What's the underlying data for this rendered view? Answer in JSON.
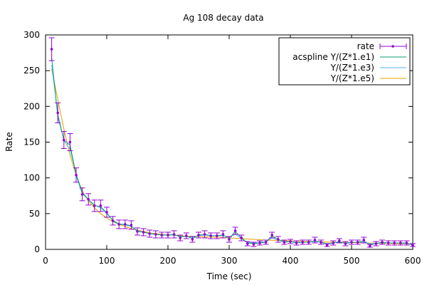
{
  "chart_data": {
    "type": "line",
    "title": "Ag 108 decay data",
    "xlabel": "Time (sec)",
    "ylabel": "Rate",
    "xlim": [
      0,
      600
    ],
    "ylim": [
      0,
      300
    ],
    "xticks": [
      0,
      100,
      200,
      300,
      400,
      500,
      600
    ],
    "yticks": [
      0,
      50,
      100,
      150,
      200,
      250,
      300
    ],
    "grid": false,
    "legend_position": "top-right",
    "colors": {
      "rate": "#9400d3",
      "fit1": "#009e73",
      "fit3": "#56b4e9",
      "fit5": "#e69f00"
    },
    "series": [
      {
        "name": "rate",
        "style": "points-errorbars",
        "x": [
          10,
          20,
          30,
          40,
          50,
          60,
          70,
          80,
          90,
          100,
          110,
          120,
          130,
          140,
          150,
          160,
          170,
          180,
          190,
          200,
          210,
          220,
          230,
          240,
          250,
          260,
          270,
          280,
          290,
          300,
          310,
          320,
          330,
          340,
          350,
          360,
          370,
          380,
          390,
          400,
          410,
          420,
          430,
          440,
          450,
          460,
          470,
          480,
          490,
          500,
          510,
          520,
          530,
          540,
          550,
          560,
          570,
          580,
          590,
          600
        ],
        "y": [
          280,
          191,
          153,
          150,
          104,
          77,
          70,
          61,
          61,
          52,
          40,
          35,
          35,
          34,
          25,
          24,
          22,
          21,
          20,
          20,
          21,
          16,
          19,
          14,
          20,
          21,
          19,
          19,
          21,
          14,
          26,
          16,
          8,
          7,
          9,
          10,
          20,
          14,
          10,
          11,
          9,
          10,
          10,
          13,
          10,
          6,
          9,
          12,
          8,
          10,
          10,
          13,
          5,
          8,
          10,
          9,
          9,
          9,
          9,
          6
        ],
        "err": [
          16,
          14,
          12,
          12,
          10,
          9,
          8,
          8,
          8,
          7,
          6,
          6,
          6,
          6,
          5,
          5,
          5,
          5,
          4,
          4,
          5,
          4,
          4,
          4,
          4,
          5,
          4,
          4,
          5,
          4,
          5,
          4,
          3,
          3,
          3,
          3,
          4,
          4,
          3,
          3,
          3,
          3,
          3,
          4,
          3,
          2,
          3,
          3,
          3,
          3,
          3,
          4,
          2,
          3,
          3,
          3,
          3,
          3,
          3,
          2
        ]
      },
      {
        "name": "acspline Y/(Z*1.e1)",
        "style": "line",
        "x": [
          10,
          20,
          30,
          40,
          50,
          60,
          70,
          80,
          90,
          100,
          110,
          120,
          130,
          140,
          150,
          160,
          170,
          180,
          190,
          200,
          210,
          220,
          230,
          240,
          250,
          260,
          270,
          280,
          290,
          300,
          310,
          320,
          330,
          340,
          350,
          360,
          370,
          380,
          390,
          400,
          410,
          420,
          430,
          440,
          450,
          460,
          470,
          480,
          490,
          500,
          510,
          520,
          530,
          540,
          550,
          560,
          570,
          580,
          590,
          600
        ],
        "y": [
          268,
          186,
          153,
          146,
          104,
          78,
          70,
          61,
          60,
          51,
          40,
          35,
          35,
          33,
          25,
          24,
          22,
          21,
          20,
          20,
          21,
          17,
          19,
          15,
          20,
          21,
          19,
          19,
          20,
          15,
          25,
          16,
          9,
          8,
          9,
          10,
          19,
          14,
          10,
          11,
          9,
          10,
          10,
          12,
          10,
          7,
          9,
          11,
          8,
          10,
          10,
          12,
          6,
          8,
          10,
          9,
          9,
          9,
          9,
          6
        ]
      },
      {
        "name": "Y/(Z*1.e3)",
        "style": "line",
        "x": [
          10,
          20,
          30,
          40,
          50,
          60,
          70,
          80,
          90,
          100,
          110,
          120,
          130,
          140,
          150,
          160,
          170,
          180,
          190,
          200,
          210,
          220,
          230,
          240,
          250,
          260,
          270,
          280,
          290,
          300,
          310,
          320,
          330,
          340,
          350,
          360,
          370,
          380,
          390,
          400,
          410,
          420,
          430,
          440,
          450,
          460,
          470,
          480,
          490,
          500,
          510,
          520,
          530,
          540,
          550,
          560,
          570,
          580,
          590,
          600
        ],
        "y": [
          258,
          190,
          152,
          140,
          106,
          80,
          70,
          62,
          58,
          50,
          41,
          36,
          34,
          32,
          26,
          24,
          22,
          21,
          20,
          20,
          20,
          18,
          18,
          17,
          19,
          20,
          19,
          19,
          19,
          17,
          21,
          15,
          10,
          9,
          10,
          11,
          16,
          13,
          11,
          11,
          10,
          10,
          10,
          11,
          10,
          8,
          9,
          10,
          9,
          10,
          10,
          10,
          8,
          9,
          9,
          9,
          9,
          9,
          8,
          7
        ]
      },
      {
        "name": "Y/(Z*1.e5)",
        "style": "line",
        "x": [
          10,
          20,
          30,
          40,
          50,
          60,
          70,
          80,
          90,
          100,
          110,
          120,
          130,
          140,
          150,
          160,
          170,
          180,
          190,
          200,
          210,
          220,
          230,
          240,
          250,
          260,
          270,
          280,
          290,
          300,
          310,
          320,
          330,
          340,
          350,
          360,
          370,
          380,
          390,
          400,
          410,
          420,
          430,
          440,
          450,
          460,
          470,
          480,
          490,
          500,
          510,
          520,
          530,
          540,
          550,
          560,
          570,
          580,
          590,
          600
        ],
        "y": [
          252,
          210,
          168,
          132,
          104,
          82,
          68,
          58,
          50,
          44,
          39,
          35,
          32,
          29,
          27,
          25,
          23,
          22,
          21,
          20,
          19.5,
          19,
          18.5,
          18,
          18,
          17.5,
          17,
          17,
          16.5,
          16,
          15.5,
          15,
          14.5,
          14,
          13.5,
          13,
          12.8,
          12.5,
          12.2,
          12,
          11.7,
          11.4,
          11.1,
          10.8,
          10.5,
          10.3,
          10.1,
          9.9,
          9.7,
          9.5,
          9.3,
          9.1,
          8.9,
          8.7,
          8.5,
          8.3,
          8.1,
          7.9,
          7.7,
          7.5
        ]
      }
    ]
  }
}
